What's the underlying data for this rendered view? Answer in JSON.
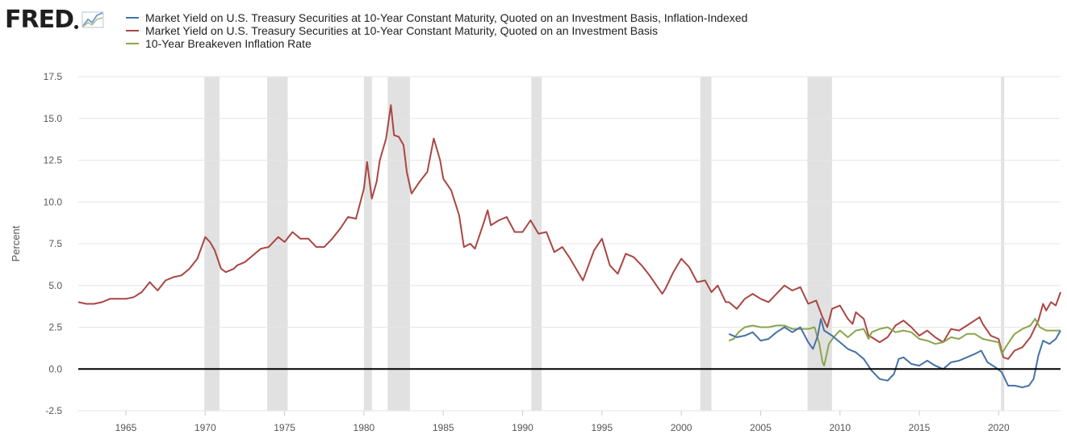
{
  "logo": {
    "text": "FRED",
    "icon": "graph-line-icon"
  },
  "chart_data": {
    "type": "line",
    "title": "",
    "xlabel": "",
    "ylabel": "Percent",
    "xlim": [
      1962.0,
      2023.9
    ],
    "ylim": [
      -2.5,
      17.5
    ],
    "y_ticks": [
      -2.5,
      0.0,
      2.5,
      5.0,
      7.5,
      10.0,
      12.5,
      15.0,
      17.5
    ],
    "y_tick_labels": [
      "-2.5",
      "0.0",
      "2.5",
      "5.0",
      "7.5",
      "10.0",
      "12.5",
      "15.0",
      "17.5"
    ],
    "x_ticks": [
      1965,
      1970,
      1975,
      1980,
      1985,
      1990,
      1995,
      2000,
      2005,
      2010,
      2015,
      2020
    ],
    "x_tick_labels": [
      "1965",
      "1970",
      "1975",
      "1980",
      "1985",
      "1990",
      "1995",
      "2000",
      "2005",
      "2010",
      "2015",
      "2020"
    ],
    "grid": "horizontal",
    "zero_line": true,
    "legend_placement": "top",
    "recessions": [
      [
        1969.95,
        1970.9
      ],
      [
        1973.9,
        1975.2
      ],
      [
        1980.0,
        1980.5
      ],
      [
        1981.5,
        1982.9
      ],
      [
        1990.55,
        1991.2
      ],
      [
        2001.2,
        2001.9
      ],
      [
        2007.95,
        2009.5
      ],
      [
        2020.15,
        2020.35
      ]
    ],
    "series": [
      {
        "name": "Market Yield on U.S. Treasury Securities at 10-Year Constant Maturity, Quoted on an Investment Basis, Inflation-Indexed",
        "color": "#4572a7",
        "x": [
          2003.0,
          2003.5,
          2004.0,
          2004.5,
          2005.0,
          2005.5,
          2006.0,
          2006.5,
          2007.0,
          2007.5,
          2008.0,
          2008.3,
          2008.6,
          2008.8,
          2009.0,
          2009.5,
          2010.0,
          2010.5,
          2011.0,
          2011.5,
          2012.0,
          2012.5,
          2013.0,
          2013.4,
          2013.7,
          2014.0,
          2014.5,
          2015.0,
          2015.5,
          2016.0,
          2016.5,
          2017.0,
          2017.5,
          2018.0,
          2018.5,
          2018.9,
          2019.3,
          2019.8,
          2020.2,
          2020.6,
          2021.0,
          2021.5,
          2021.9,
          2022.2,
          2022.5,
          2022.8,
          2023.2,
          2023.6,
          2023.9
        ],
        "values": [
          2.1,
          1.9,
          2.0,
          2.2,
          1.7,
          1.8,
          2.2,
          2.5,
          2.2,
          2.5,
          1.6,
          1.2,
          2.0,
          3.0,
          2.3,
          2.0,
          1.6,
          1.2,
          1.0,
          0.6,
          -0.1,
          -0.6,
          -0.7,
          -0.3,
          0.6,
          0.7,
          0.3,
          0.2,
          0.5,
          0.2,
          0.0,
          0.4,
          0.5,
          0.7,
          0.9,
          1.1,
          0.4,
          0.1,
          -0.2,
          -1.0,
          -1.0,
          -1.1,
          -1.0,
          -0.6,
          0.8,
          1.7,
          1.5,
          1.8,
          2.3
        ]
      },
      {
        "name": "Market Yield on U.S. Treasury Securities at 10-Year Constant Maturity, Quoted on an Investment Basis",
        "color": "#aa4643",
        "x": [
          1962.0,
          1962.5,
          1963.0,
          1963.5,
          1964.0,
          1964.5,
          1965.0,
          1965.5,
          1966.0,
          1966.5,
          1967.0,
          1967.5,
          1968.0,
          1968.5,
          1969.0,
          1969.5,
          1970.0,
          1970.3,
          1970.6,
          1971.0,
          1971.3,
          1971.8,
          1972.0,
          1972.5,
          1973.0,
          1973.5,
          1974.0,
          1974.6,
          1975.0,
          1975.5,
          1976.0,
          1976.5,
          1977.0,
          1977.5,
          1978.0,
          1978.5,
          1979.0,
          1979.5,
          1980.0,
          1980.2,
          1980.5,
          1980.8,
          1981.0,
          1981.4,
          1981.7,
          1981.9,
          1982.2,
          1982.5,
          1982.7,
          1983.0,
          1983.5,
          1984.0,
          1984.4,
          1984.8,
          1985.0,
          1985.5,
          1986.0,
          1986.3,
          1986.7,
          1987.0,
          1987.5,
          1987.8,
          1988.0,
          1988.5,
          1989.0,
          1989.5,
          1990.0,
          1990.5,
          1991.0,
          1991.5,
          1992.0,
          1992.5,
          1993.0,
          1993.8,
          1994.0,
          1994.5,
          1995.0,
          1995.5,
          1996.0,
          1996.5,
          1997.0,
          1997.5,
          1998.0,
          1998.8,
          1999.0,
          1999.5,
          2000.0,
          2000.5,
          2001.0,
          2001.5,
          2001.9,
          2002.3,
          2002.8,
          2003.0,
          2003.5,
          2004.0,
          2004.5,
          2005.0,
          2005.5,
          2006.0,
          2006.5,
          2007.0,
          2007.5,
          2008.0,
          2008.5,
          2008.9,
          2009.2,
          2009.5,
          2010.0,
          2010.5,
          2010.8,
          2011.0,
          2011.5,
          2011.8,
          2012.0,
          2012.5,
          2013.0,
          2013.5,
          2014.0,
          2014.5,
          2015.0,
          2015.5,
          2016.0,
          2016.5,
          2017.0,
          2017.5,
          2018.0,
          2018.8,
          2019.0,
          2019.5,
          2020.0,
          2020.3,
          2020.6,
          2021.0,
          2021.5,
          2022.0,
          2022.5,
          2022.8,
          2023.0,
          2023.3,
          2023.6,
          2023.9
        ],
        "values": [
          4.0,
          3.9,
          3.9,
          4.0,
          4.2,
          4.2,
          4.2,
          4.3,
          4.6,
          5.2,
          4.7,
          5.3,
          5.5,
          5.6,
          6.0,
          6.6,
          7.9,
          7.6,
          7.1,
          6.0,
          5.8,
          6.0,
          6.2,
          6.4,
          6.8,
          7.2,
          7.3,
          7.9,
          7.6,
          8.2,
          7.8,
          7.8,
          7.3,
          7.3,
          7.8,
          8.4,
          9.1,
          9.0,
          10.8,
          12.4,
          10.2,
          11.2,
          12.5,
          13.8,
          15.8,
          14.0,
          13.9,
          13.4,
          11.8,
          10.5,
          11.2,
          11.8,
          13.8,
          12.5,
          11.4,
          10.7,
          9.2,
          7.3,
          7.5,
          7.2,
          8.6,
          9.5,
          8.6,
          8.9,
          9.1,
          8.2,
          8.2,
          8.9,
          8.1,
          8.2,
          7.0,
          7.3,
          6.6,
          5.3,
          5.8,
          7.1,
          7.8,
          6.2,
          5.7,
          6.9,
          6.7,
          6.2,
          5.6,
          4.5,
          4.8,
          5.8,
          6.6,
          6.1,
          5.2,
          5.3,
          4.6,
          5.0,
          4.0,
          4.0,
          3.6,
          4.2,
          4.5,
          4.2,
          4.0,
          4.5,
          5.0,
          4.7,
          4.9,
          3.9,
          4.1,
          3.1,
          2.5,
          3.6,
          3.8,
          3.0,
          2.7,
          3.4,
          3.0,
          2.0,
          1.9,
          1.6,
          1.9,
          2.6,
          2.9,
          2.5,
          2.0,
          2.3,
          1.9,
          1.6,
          2.4,
          2.3,
          2.6,
          3.1,
          2.7,
          2.0,
          1.8,
          0.7,
          0.6,
          1.1,
          1.3,
          1.9,
          2.9,
          3.9,
          3.5,
          4.0,
          3.8,
          4.6
        ]
      },
      {
        "name": "10-Year Breakeven Inflation Rate",
        "color": "#89a54e",
        "x": [
          2003.0,
          2003.3,
          2003.6,
          2004.0,
          2004.5,
          2005.0,
          2005.5,
          2006.0,
          2006.5,
          2007.0,
          2007.5,
          2008.0,
          2008.4,
          2008.7,
          2008.9,
          2009.0,
          2009.3,
          2009.6,
          2010.0,
          2010.5,
          2011.0,
          2011.5,
          2011.8,
          2012.0,
          2012.5,
          2013.0,
          2013.5,
          2014.0,
          2014.5,
          2015.0,
          2015.5,
          2016.0,
          2016.5,
          2017.0,
          2017.5,
          2018.0,
          2018.5,
          2019.0,
          2019.5,
          2020.0,
          2020.2,
          2020.5,
          2021.0,
          2021.5,
          2022.0,
          2022.3,
          2022.6,
          2023.0,
          2023.4,
          2023.9
        ],
        "values": [
          1.7,
          1.8,
          2.2,
          2.5,
          2.6,
          2.5,
          2.5,
          2.6,
          2.6,
          2.4,
          2.4,
          2.4,
          2.5,
          1.5,
          0.4,
          0.2,
          1.5,
          1.9,
          2.3,
          1.9,
          2.3,
          2.4,
          1.8,
          2.2,
          2.4,
          2.5,
          2.2,
          2.3,
          2.2,
          1.8,
          1.7,
          1.5,
          1.6,
          1.9,
          1.8,
          2.1,
          2.1,
          1.8,
          1.7,
          1.6,
          0.9,
          1.4,
          2.1,
          2.4,
          2.6,
          3.0,
          2.5,
          2.3,
          2.3,
          2.3
        ]
      }
    ]
  }
}
